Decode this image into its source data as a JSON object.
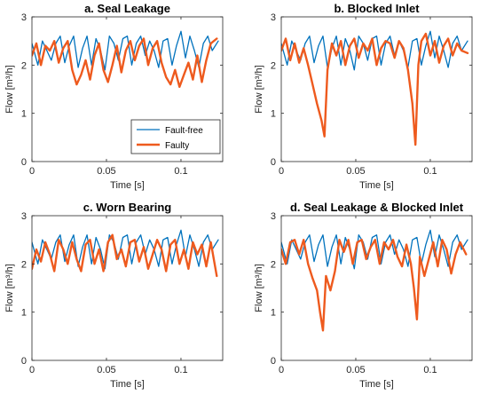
{
  "figure": {
    "legend": {
      "entries": [
        {
          "label": "Fault-free",
          "color": "#0072BD"
        },
        {
          "label": "Faulty",
          "color": "#EE5A1E"
        }
      ],
      "placement": "lower-right of panel a"
    },
    "xlabel": "Time [s]",
    "ylabel": "Flow [m³/h]"
  },
  "chart_data": [
    {
      "type": "line",
      "title": "a. Seal Leakage",
      "xlabel": "Time [s]",
      "ylabel": "Flow [m³/h]",
      "xlim": [
        0,
        0.128
      ],
      "ylim": [
        0,
        3
      ],
      "xticks": [
        "0",
        "0.05",
        "0.1"
      ],
      "yticks": [
        "0",
        "1",
        "2",
        "3"
      ],
      "legend": true,
      "series": [
        {
          "name": "Fault-free",
          "color": "#0072BD",
          "x": [
            0,
            0.004,
            0.007,
            0.01,
            0.013,
            0.016,
            0.019,
            0.022,
            0.025,
            0.028,
            0.031,
            0.034,
            0.037,
            0.04,
            0.043,
            0.046,
            0.049,
            0.052,
            0.055,
            0.058,
            0.061,
            0.064,
            0.067,
            0.07,
            0.073,
            0.076,
            0.079,
            0.082,
            0.085,
            0.088,
            0.091,
            0.094,
            0.097,
            0.1,
            0.103,
            0.106,
            0.109,
            0.112,
            0.115,
            0.118,
            0.121,
            0.125
          ],
          "y": [
            2.45,
            2.0,
            2.5,
            2.3,
            2.1,
            2.45,
            2.6,
            2.05,
            2.4,
            2.6,
            1.95,
            2.35,
            2.6,
            2.0,
            2.55,
            2.3,
            1.9,
            2.6,
            2.45,
            2.1,
            2.55,
            2.6,
            2.0,
            2.45,
            2.6,
            2.2,
            2.5,
            2.3,
            1.95,
            2.5,
            2.55,
            2.0,
            2.4,
            2.7,
            2.15,
            2.6,
            2.3,
            1.95,
            2.45,
            2.6,
            2.3,
            2.5
          ]
        },
        {
          "name": "Faulty",
          "color": "#EE5A1E",
          "x": [
            0,
            0.003,
            0.006,
            0.009,
            0.012,
            0.015,
            0.018,
            0.021,
            0.024,
            0.027,
            0.03,
            0.033,
            0.036,
            0.039,
            0.042,
            0.045,
            0.048,
            0.051,
            0.054,
            0.057,
            0.06,
            0.063,
            0.066,
            0.069,
            0.072,
            0.075,
            0.078,
            0.081,
            0.084,
            0.087,
            0.09,
            0.093,
            0.096,
            0.099,
            0.102,
            0.105,
            0.108,
            0.111,
            0.114,
            0.117,
            0.12,
            0.124
          ],
          "y": [
            2.2,
            2.45,
            2.0,
            2.4,
            2.3,
            2.5,
            2.05,
            2.35,
            2.5,
            1.9,
            1.6,
            1.8,
            2.1,
            1.7,
            2.2,
            2.45,
            1.9,
            1.65,
            2.0,
            2.4,
            1.85,
            2.3,
            2.5,
            2.1,
            2.4,
            2.55,
            2.0,
            2.35,
            2.5,
            2.05,
            1.75,
            1.6,
            1.9,
            1.55,
            1.8,
            2.05,
            1.7,
            2.2,
            1.65,
            2.1,
            2.45,
            2.55
          ]
        }
      ]
    },
    {
      "type": "line",
      "title": "b. Blocked Inlet",
      "xlabel": "Time [s]",
      "ylabel": "Flow [m³/h]",
      "xlim": [
        0,
        0.128
      ],
      "ylim": [
        0,
        3
      ],
      "xticks": [
        "0",
        "0.05",
        "0.1"
      ],
      "yticks": [
        "0",
        "1",
        "2",
        "3"
      ],
      "legend": false,
      "series": [
        {
          "name": "Fault-free",
          "color": "#0072BD",
          "x": [
            0,
            0.004,
            0.007,
            0.01,
            0.013,
            0.016,
            0.019,
            0.022,
            0.025,
            0.028,
            0.031,
            0.034,
            0.037,
            0.04,
            0.043,
            0.046,
            0.049,
            0.052,
            0.055,
            0.058,
            0.061,
            0.064,
            0.067,
            0.07,
            0.073,
            0.076,
            0.079,
            0.082,
            0.085,
            0.088,
            0.091,
            0.094,
            0.097,
            0.1,
            0.103,
            0.106,
            0.109,
            0.112,
            0.115,
            0.118,
            0.121,
            0.125
          ],
          "y": [
            2.45,
            2.0,
            2.5,
            2.3,
            2.1,
            2.45,
            2.6,
            2.05,
            2.4,
            2.6,
            1.95,
            2.35,
            2.6,
            2.0,
            2.55,
            2.3,
            1.9,
            2.6,
            2.45,
            2.1,
            2.55,
            2.6,
            2.0,
            2.45,
            2.6,
            2.2,
            2.5,
            2.3,
            1.95,
            2.5,
            2.55,
            2.0,
            2.4,
            2.7,
            2.15,
            2.6,
            2.3,
            1.95,
            2.45,
            2.6,
            2.3,
            2.5
          ]
        },
        {
          "name": "Faulty",
          "color": "#EE5A1E",
          "x": [
            0,
            0.003,
            0.006,
            0.009,
            0.012,
            0.015,
            0.018,
            0.021,
            0.024,
            0.027,
            0.029,
            0.031,
            0.034,
            0.037,
            0.04,
            0.043,
            0.046,
            0.049,
            0.052,
            0.055,
            0.058,
            0.061,
            0.064,
            0.067,
            0.07,
            0.073,
            0.076,
            0.079,
            0.082,
            0.085,
            0.088,
            0.09,
            0.092,
            0.094,
            0.097,
            0.1,
            0.103,
            0.106,
            0.109,
            0.112,
            0.115,
            0.118,
            0.121,
            0.125
          ],
          "y": [
            2.3,
            2.55,
            2.1,
            2.45,
            2.05,
            2.35,
            2.0,
            1.6,
            1.2,
            0.85,
            0.52,
            1.9,
            2.45,
            2.2,
            2.5,
            2.0,
            2.4,
            2.55,
            2.15,
            2.45,
            2.3,
            2.55,
            2.0,
            2.35,
            2.5,
            2.45,
            2.15,
            2.5,
            2.35,
            1.9,
            1.2,
            0.35,
            2.0,
            2.5,
            2.65,
            2.2,
            2.5,
            2.05,
            2.4,
            2.55,
            2.2,
            2.45,
            2.3,
            2.25
          ]
        }
      ]
    },
    {
      "type": "line",
      "title": "c. Worn Bearing",
      "xlabel": "Time [s]",
      "ylabel": "Flow [m³/h]",
      "xlim": [
        0,
        0.128
      ],
      "ylim": [
        0,
        3
      ],
      "xticks": [
        "0",
        "0.05",
        "0.1"
      ],
      "yticks": [
        "0",
        "1",
        "2",
        "3"
      ],
      "legend": false,
      "series": [
        {
          "name": "Fault-free",
          "color": "#0072BD",
          "x": [
            0,
            0.004,
            0.007,
            0.01,
            0.013,
            0.016,
            0.019,
            0.022,
            0.025,
            0.028,
            0.031,
            0.034,
            0.037,
            0.04,
            0.043,
            0.046,
            0.049,
            0.052,
            0.055,
            0.058,
            0.061,
            0.064,
            0.067,
            0.07,
            0.073,
            0.076,
            0.079,
            0.082,
            0.085,
            0.088,
            0.091,
            0.094,
            0.097,
            0.1,
            0.103,
            0.106,
            0.109,
            0.112,
            0.115,
            0.118,
            0.121,
            0.125
          ],
          "y": [
            2.45,
            2.0,
            2.5,
            2.3,
            2.1,
            2.45,
            2.6,
            2.05,
            2.4,
            2.6,
            1.95,
            2.35,
            2.6,
            2.0,
            2.55,
            2.3,
            1.9,
            2.6,
            2.45,
            2.1,
            2.55,
            2.6,
            2.0,
            2.45,
            2.6,
            2.2,
            2.5,
            2.3,
            1.95,
            2.5,
            2.55,
            2.0,
            2.4,
            2.7,
            2.15,
            2.6,
            2.3,
            1.95,
            2.45,
            2.6,
            2.3,
            2.5
          ]
        },
        {
          "name": "Faulty",
          "color": "#EE5A1E",
          "x": [
            0,
            0.003,
            0.006,
            0.009,
            0.012,
            0.015,
            0.018,
            0.021,
            0.024,
            0.027,
            0.03,
            0.033,
            0.036,
            0.039,
            0.042,
            0.045,
            0.048,
            0.051,
            0.054,
            0.057,
            0.06,
            0.063,
            0.066,
            0.069,
            0.072,
            0.075,
            0.078,
            0.081,
            0.084,
            0.087,
            0.09,
            0.093,
            0.096,
            0.099,
            0.102,
            0.105,
            0.108,
            0.111,
            0.114,
            0.117,
            0.12,
            0.124
          ],
          "y": [
            1.9,
            2.3,
            2.05,
            2.45,
            2.2,
            1.85,
            2.5,
            2.3,
            2.0,
            2.45,
            2.1,
            1.85,
            2.4,
            2.5,
            2.0,
            2.3,
            1.85,
            2.45,
            2.6,
            2.1,
            2.3,
            1.95,
            2.45,
            2.5,
            2.05,
            2.35,
            1.9,
            2.2,
            2.5,
            2.3,
            1.85,
            2.4,
            2.5,
            2.0,
            2.3,
            1.9,
            2.45,
            2.2,
            2.4,
            1.95,
            2.45,
            1.75
          ]
        }
      ]
    },
    {
      "type": "line",
      "title": "d. Seal Leakage & Blocked Inlet",
      "xlabel": "Time [s]",
      "ylabel": "Flow [m³/h]",
      "xlim": [
        0,
        0.128
      ],
      "ylim": [
        0,
        3
      ],
      "xticks": [
        "0",
        "0.05",
        "0.1"
      ],
      "yticks": [
        "0",
        "1",
        "2",
        "3"
      ],
      "legend": false,
      "series": [
        {
          "name": "Fault-free",
          "color": "#0072BD",
          "x": [
            0,
            0.004,
            0.007,
            0.01,
            0.013,
            0.016,
            0.019,
            0.022,
            0.025,
            0.028,
            0.031,
            0.034,
            0.037,
            0.04,
            0.043,
            0.046,
            0.049,
            0.052,
            0.055,
            0.058,
            0.061,
            0.064,
            0.067,
            0.07,
            0.073,
            0.076,
            0.079,
            0.082,
            0.085,
            0.088,
            0.091,
            0.094,
            0.097,
            0.1,
            0.103,
            0.106,
            0.109,
            0.112,
            0.115,
            0.118,
            0.121,
            0.125
          ],
          "y": [
            2.45,
            2.0,
            2.5,
            2.3,
            2.1,
            2.45,
            2.6,
            2.05,
            2.4,
            2.6,
            1.95,
            2.35,
            2.6,
            2.0,
            2.55,
            2.3,
            1.9,
            2.6,
            2.45,
            2.1,
            2.55,
            2.6,
            2.0,
            2.45,
            2.6,
            2.2,
            2.5,
            2.3,
            1.95,
            2.5,
            2.55,
            2.0,
            2.4,
            2.7,
            2.15,
            2.6,
            2.3,
            1.95,
            2.45,
            2.6,
            2.3,
            2.5
          ]
        },
        {
          "name": "Faulty",
          "color": "#EE5A1E",
          "x": [
            0,
            0.003,
            0.006,
            0.009,
            0.012,
            0.015,
            0.018,
            0.021,
            0.024,
            0.026,
            0.028,
            0.03,
            0.033,
            0.036,
            0.039,
            0.042,
            0.045,
            0.048,
            0.051,
            0.054,
            0.057,
            0.06,
            0.063,
            0.066,
            0.069,
            0.072,
            0.075,
            0.078,
            0.081,
            0.084,
            0.087,
            0.089,
            0.091,
            0.093,
            0.096,
            0.099,
            0.102,
            0.105,
            0.108,
            0.111,
            0.114,
            0.117,
            0.12,
            0.124
          ],
          "y": [
            2.3,
            2.0,
            2.45,
            2.5,
            2.2,
            2.5,
            2.0,
            1.7,
            1.45,
            1.0,
            0.62,
            1.75,
            1.45,
            1.85,
            2.5,
            2.25,
            2.5,
            2.0,
            2.45,
            2.5,
            2.1,
            2.35,
            2.5,
            2.0,
            2.45,
            2.3,
            2.5,
            2.15,
            1.95,
            2.4,
            2.0,
            1.5,
            0.85,
            2.15,
            1.75,
            2.1,
            2.45,
            1.95,
            2.5,
            2.3,
            1.8,
            2.2,
            2.45,
            2.2
          ]
        }
      ]
    }
  ]
}
